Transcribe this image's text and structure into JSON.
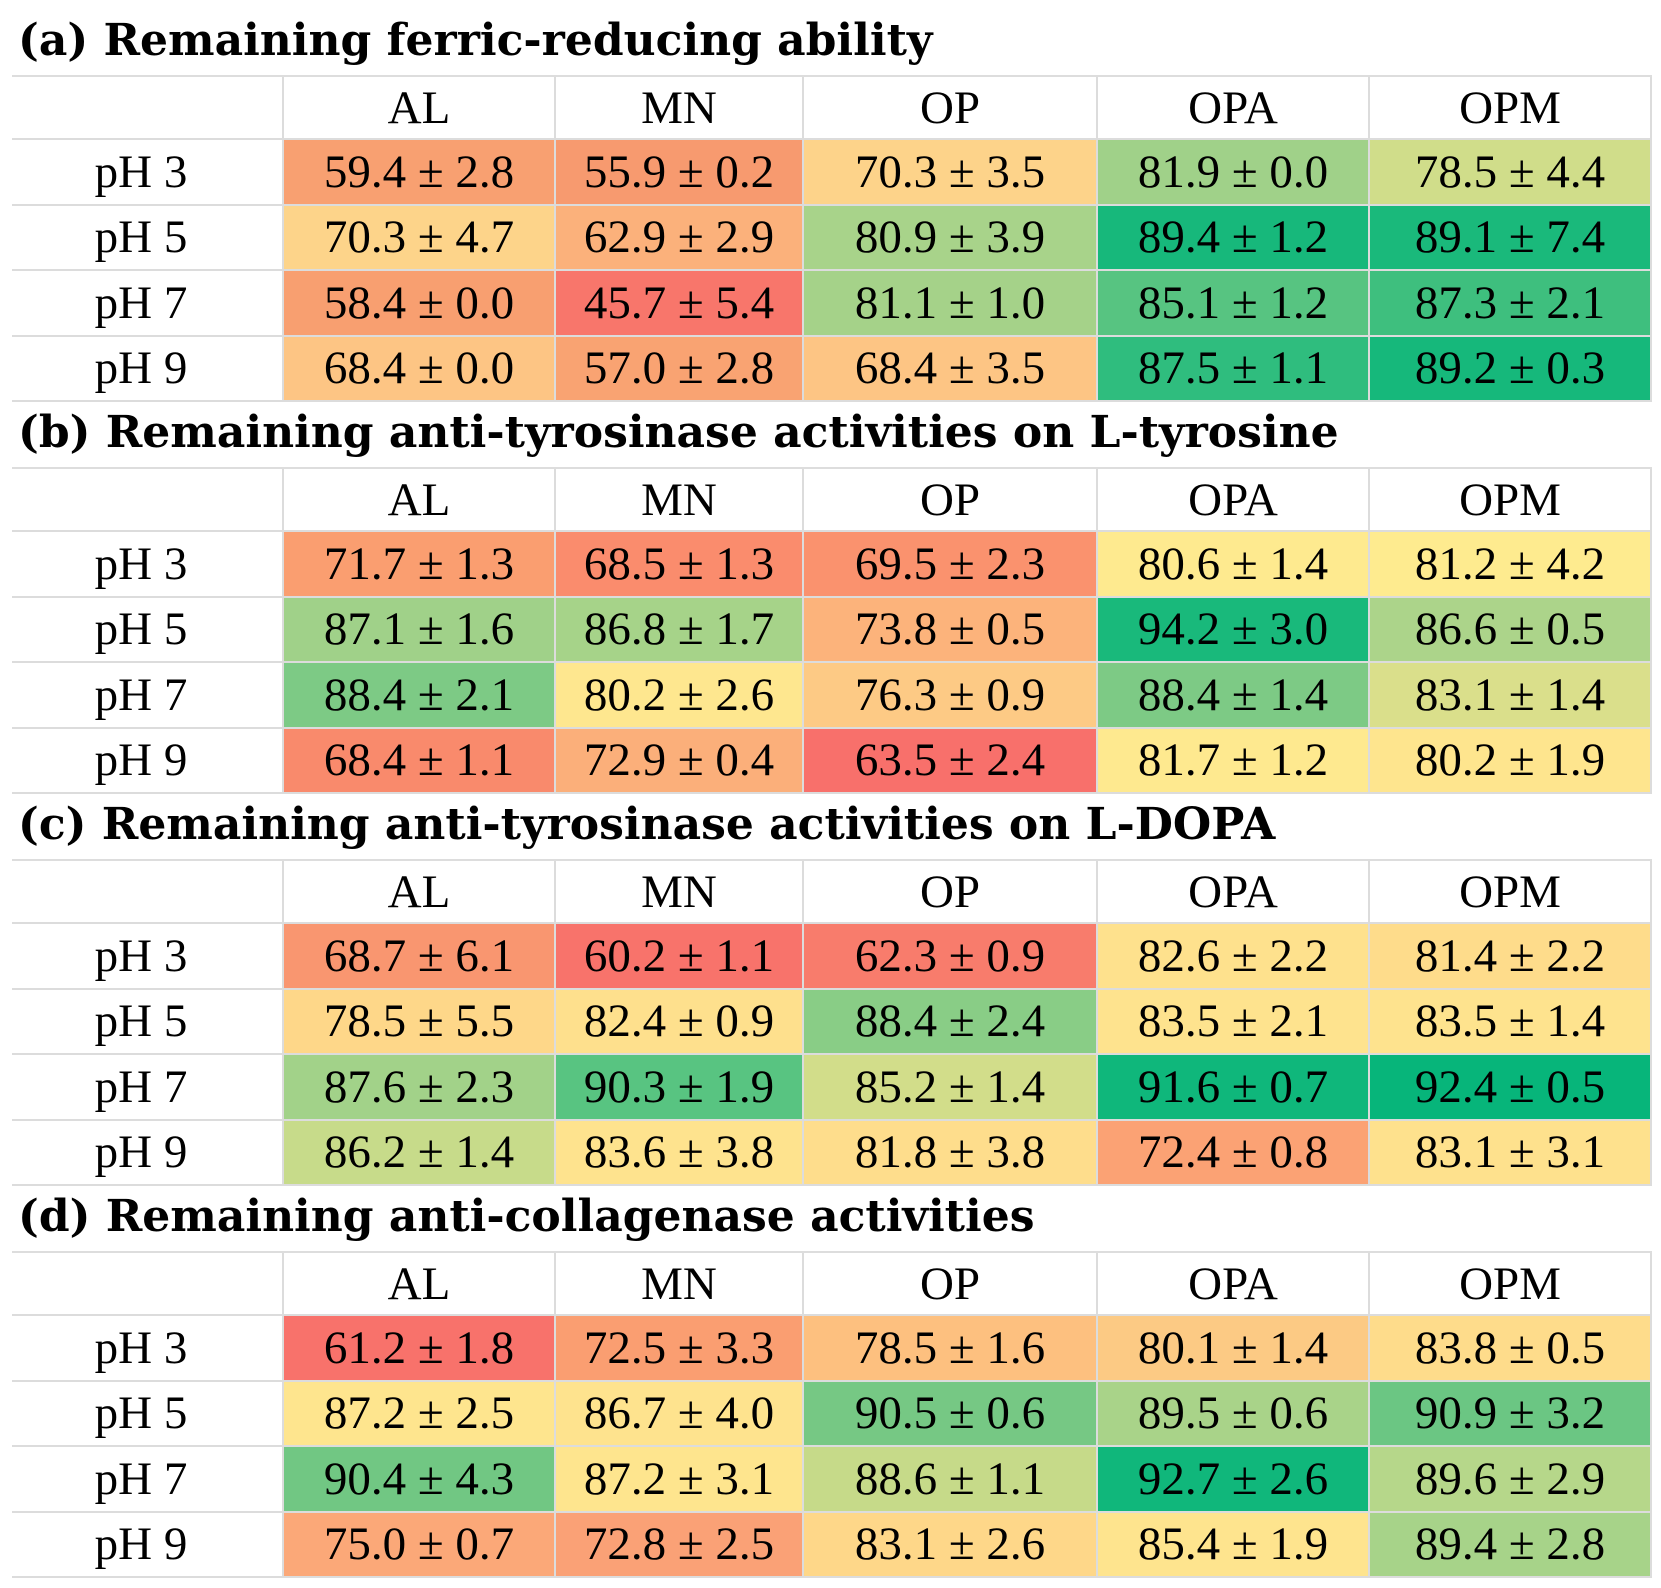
{
  "chart_data": [
    {
      "type": "heatmap",
      "title": "(a) Remaining ferric-reducing ability",
      "columns": [
        "AL",
        "MN",
        "OP",
        "OPA",
        "OPM"
      ],
      "rows": [
        "pH 3",
        "pH 5",
        "pH 7",
        "pH 9"
      ],
      "values": [
        [
          "59.4 ± 2.8",
          "55.9 ± 0.2",
          "70.3 ± 3.5",
          "81.9 ± 0.0",
          "78.5 ± 4.4"
        ],
        [
          "70.3 ± 4.7",
          "62.9 ± 2.9",
          "80.9 ± 3.9",
          "89.4 ± 1.2",
          "89.1 ± 7.4"
        ],
        [
          "58.4 ± 0.0",
          "45.7 ± 5.4",
          "81.1 ± 1.0",
          "85.1 ± 1.2",
          "87.3 ± 2.1"
        ],
        [
          "68.4 ± 0.0",
          "57.0 ± 2.8",
          "68.4 ± 3.5",
          "87.5 ± 1.1",
          "89.2 ± 0.3"
        ]
      ],
      "colors": [
        [
          "#f8a071",
          "#f79a6f",
          "#fdd38a",
          "#a0d189",
          "#d0dd8a"
        ],
        [
          "#fdd48a",
          "#fbb17b",
          "#a8d38a",
          "#17b87b",
          "#1ab97b"
        ],
        [
          "#f89f70",
          "#f8766b",
          "#a5d289",
          "#57c481",
          "#3ebf7e"
        ],
        [
          "#fdc584",
          "#f9a372",
          "#fdc584",
          "#2fbd7e",
          "#16b87b"
        ]
      ]
    },
    {
      "type": "heatmap",
      "title": "(b) Remaining anti-tyrosinase activities on L-tyrosine",
      "columns": [
        "AL",
        "MN",
        "OP",
        "OPA",
        "OPM"
      ],
      "rows": [
        "pH 3",
        "pH 5",
        "pH 7",
        "pH 9"
      ],
      "values": [
        [
          "71.7 ± 1.3",
          "68.5 ± 1.3",
          "69.5 ± 2.3",
          "80.6 ± 1.4",
          "81.2 ± 4.2"
        ],
        [
          "87.1 ± 1.6",
          "86.8 ± 1.7",
          "73.8 ± 0.5",
          "94.2 ± 3.0",
          "86.6 ± 0.5"
        ],
        [
          "88.4 ± 2.1",
          "80.2 ± 2.6",
          "76.3 ± 0.9",
          "88.4 ± 1.4",
          "83.1 ± 1.4"
        ],
        [
          "68.4 ± 1.1",
          "72.9 ± 0.4",
          "63.5 ± 2.4",
          "81.7 ± 1.2",
          "80.2 ± 1.9"
        ]
      ],
      "colors": [
        [
          "#fa9e70",
          "#fa8c6d",
          "#fa926e",
          "#feea8f",
          "#feeb8f"
        ],
        [
          "#a0d189",
          "#a6d389",
          "#fcb37b",
          "#19b97b",
          "#acd48a"
        ],
        [
          "#7dca85",
          "#fee78f",
          "#fdca85",
          "#7dca85",
          "#dadf8b"
        ],
        [
          "#f98a6c",
          "#fbaf7a",
          "#f8706b",
          "#fee98f",
          "#fee58e"
        ]
      ]
    },
    {
      "type": "heatmap",
      "title": "(c) Remaining anti-tyrosinase activities on L-DOPA",
      "columns": [
        "AL",
        "MN",
        "OP",
        "OPA",
        "OPM"
      ],
      "rows": [
        "pH 3",
        "pH 5",
        "pH 7",
        "pH 9"
      ],
      "values": [
        [
          "68.7 ± 6.1",
          "60.2 ± 1.1",
          "62.3 ± 0.9",
          "82.6 ± 2.2",
          "81.4 ± 2.2"
        ],
        [
          "78.5 ± 5.5",
          "82.4 ± 0.9",
          "88.4 ± 2.4",
          "83.5 ± 2.1",
          "83.5 ± 1.4"
        ],
        [
          "87.6 ± 2.3",
          "90.3 ± 1.9",
          "85.2 ± 1.4",
          "91.6 ± 0.7",
          "92.4 ± 0.5"
        ],
        [
          "86.2 ± 1.4",
          "83.6 ± 3.8",
          "81.8 ± 3.8",
          "72.4 ± 0.8",
          "83.1 ± 3.1"
        ]
      ],
      "colors": [
        [
          "#f99670",
          "#f8736b",
          "#f87c6c",
          "#fee18d",
          "#fedc8b"
        ],
        [
          "#fed789",
          "#fee08d",
          "#89cd86",
          "#fee38e",
          "#fee38e"
        ],
        [
          "#a2d289",
          "#58c481",
          "#d2dd8a",
          "#0fb77b",
          "#07b57a"
        ],
        [
          "#c7db8a",
          "#fee38e",
          "#fedd8c",
          "#fba274",
          "#fee18d"
        ]
      ]
    },
    {
      "type": "heatmap",
      "title": "(d) Remaining anti-collagenase activities",
      "columns": [
        "AL",
        "MN",
        "OP",
        "OPA",
        "OPM"
      ],
      "rows": [
        "pH 3",
        "pH 5",
        "pH 7",
        "pH 9"
      ],
      "values": [
        [
          "61.2 ± 1.8",
          "72.5 ± 3.3",
          "78.5 ± 1.6",
          "80.1 ± 1.4",
          "83.8 ± 0.5"
        ],
        [
          "87.2 ± 2.5",
          "86.7 ± 4.0",
          "90.5 ± 0.6",
          "89.5 ± 0.6",
          "90.9 ± 3.2"
        ],
        [
          "90.4 ± 4.3",
          "87.2 ± 3.1",
          "88.6 ± 1.1",
          "92.7 ± 2.6",
          "89.6 ± 2.9"
        ],
        [
          "75.0 ± 0.7",
          "72.8 ± 2.5",
          "83.1 ± 2.6",
          "85.4 ± 1.9",
          "89.4 ± 2.8"
        ]
      ],
      "colors": [
        [
          "#f8726b",
          "#fa9e71",
          "#fdc07f",
          "#fcca84",
          "#fedc8b"
        ],
        [
          "#fee58e",
          "#fee38e",
          "#76c884",
          "#a9d389",
          "#6bc683"
        ],
        [
          "#71c783",
          "#fee58e",
          "#c6da89",
          "#10b77b",
          "#b6d78a"
        ],
        [
          "#fba878",
          "#faa176",
          "#fed789",
          "#fee48e",
          "#a7d389"
        ]
      ]
    }
  ]
}
